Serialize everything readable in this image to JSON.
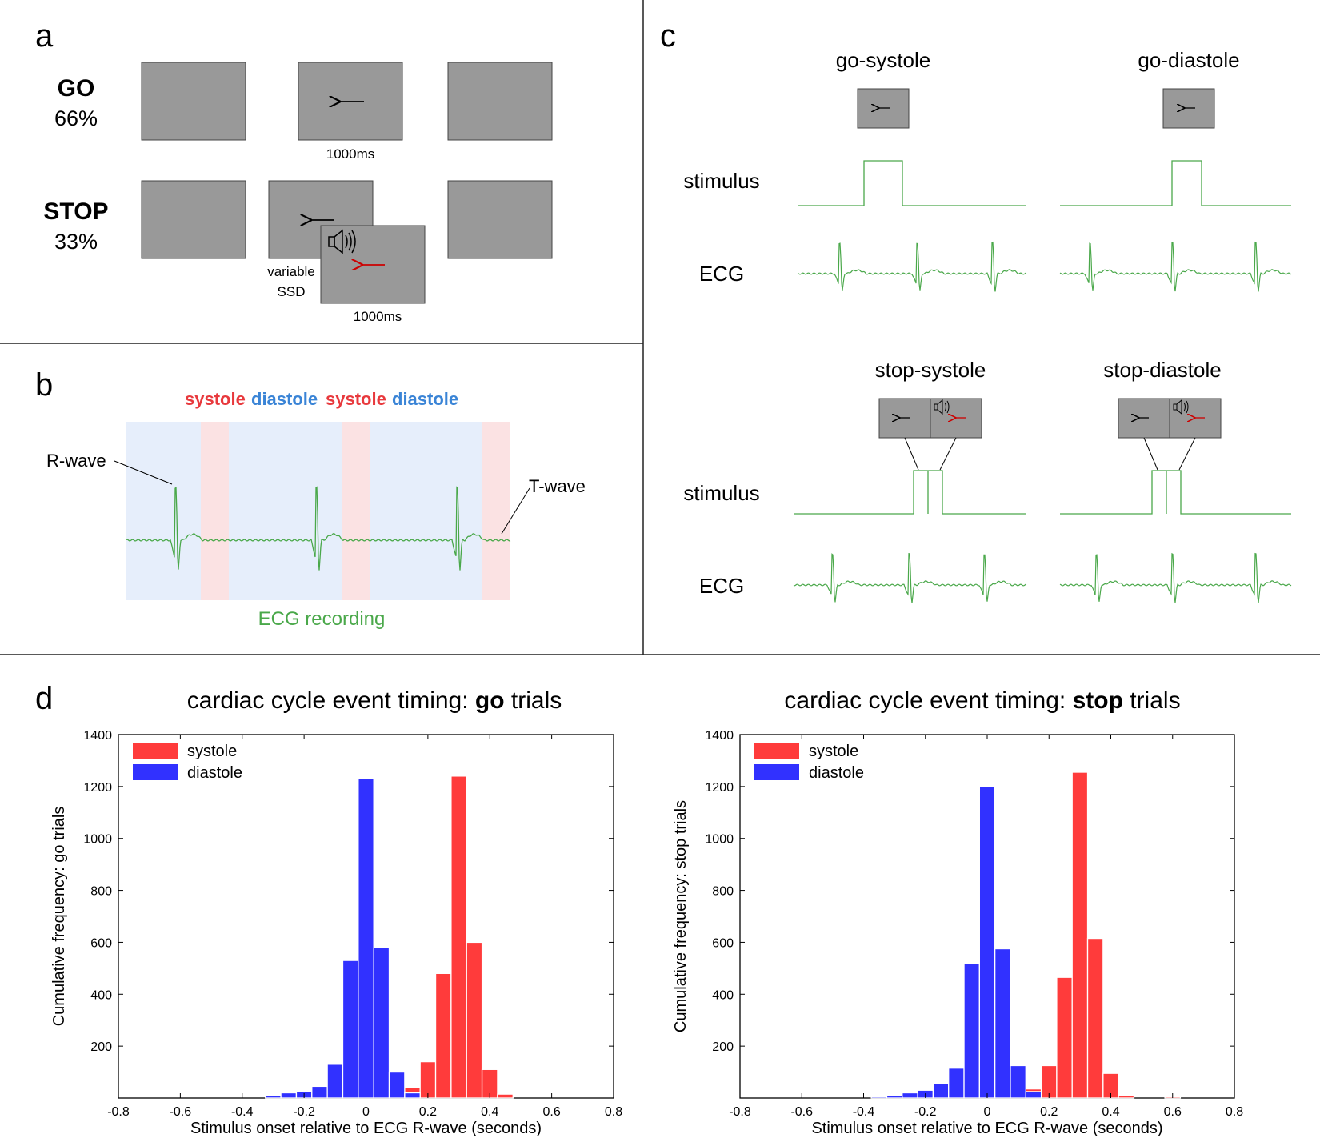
{
  "panels": {
    "a": {
      "label": "a",
      "go": {
        "title": "GO",
        "pct": "66%",
        "duration": "1000ms"
      },
      "stop": {
        "title": "STOP",
        "pct": "33%",
        "ssd_line1": "variable",
        "ssd_line2": "SSD",
        "duration": "1000ms"
      }
    },
    "b": {
      "label": "b",
      "phases": [
        "systole",
        "diastole",
        "systole",
        "diastole"
      ],
      "r_wave_label": "R-wave",
      "t_wave_label": "T-wave",
      "caption": "ECG recording"
    },
    "c": {
      "label": "c",
      "conditions": [
        "go-systole",
        "go-diastole",
        "stop-systole",
        "stop-diastole"
      ],
      "stimulus_label": "stimulus",
      "ecg_label": "ECG"
    },
    "d": {
      "label": "d"
    }
  },
  "colors": {
    "systole": "#ff3b3b",
    "diastole": "#3131ff",
    "systole_text": "#e8393d",
    "diastole_text": "#3a84d6",
    "ecg": "#4aa84a",
    "screen": "#999999"
  },
  "chart_data": [
    {
      "type": "bar",
      "title_prefix": "cardiac cycle event timing: ",
      "title_bold": "go",
      "title_suffix": " trials",
      "xlabel": "Stimulus onset relative to ECG R-wave (seconds)",
      "ylabel": "Cumulative frequency: go trials",
      "xlim": [
        -0.8,
        0.8
      ],
      "ylim": [
        0,
        1400
      ],
      "xticks": [
        "-0.8",
        "-0.6",
        "-0.4",
        "-0.2",
        "0",
        "0.2",
        "0.4",
        "0.6",
        "0.8"
      ],
      "yticks": [
        "200",
        "400",
        "600",
        "800",
        "1000",
        "1200",
        "1400"
      ],
      "legend": [
        "systole",
        "diastole"
      ],
      "bin_width": 0.05,
      "series": [
        {
          "name": "diastole",
          "x": [
            -0.3,
            -0.25,
            -0.2,
            -0.15,
            -0.1,
            -0.05,
            0,
            0.05,
            0.1,
            0.15
          ],
          "values": [
            10,
            20,
            25,
            45,
            130,
            530,
            1230,
            580,
            100,
            20
          ]
        },
        {
          "name": "systole",
          "x": [
            0.15,
            0.2,
            0.25,
            0.3,
            0.35,
            0.4,
            0.45
          ],
          "values": [
            40,
            140,
            480,
            1240,
            600,
            110,
            15
          ]
        }
      ]
    },
    {
      "type": "bar",
      "title_prefix": "cardiac cycle event timing: ",
      "title_bold": "stop",
      "title_suffix": " trials",
      "xlabel": "Stimulus onset relative to ECG R-wave (seconds)",
      "ylabel": "Cumulative frequency: stop trials",
      "xlim": [
        -0.8,
        0.8
      ],
      "ylim": [
        0,
        1400
      ],
      "xticks": [
        "-0.8",
        "-0.6",
        "-0.4",
        "-0.2",
        "0",
        "0.2",
        "0.4",
        "0.6",
        "0.8"
      ],
      "yticks": [
        "200",
        "400",
        "600",
        "800",
        "1000",
        "1200",
        "1400"
      ],
      "legend": [
        "systole",
        "diastole"
      ],
      "bin_width": 0.05,
      "series": [
        {
          "name": "diastole",
          "x": [
            -0.35,
            -0.3,
            -0.25,
            -0.2,
            -0.15,
            -0.1,
            -0.05,
            0,
            0.05,
            0.1,
            0.15
          ],
          "values": [
            5,
            10,
            20,
            30,
            55,
            115,
            520,
            1200,
            575,
            125,
            25
          ]
        },
        {
          "name": "systole",
          "x": [
            0.15,
            0.2,
            0.25,
            0.3,
            0.35,
            0.4,
            0.45,
            0.6
          ],
          "values": [
            35,
            125,
            465,
            1255,
            615,
            95,
            10,
            5
          ]
        }
      ]
    }
  ]
}
